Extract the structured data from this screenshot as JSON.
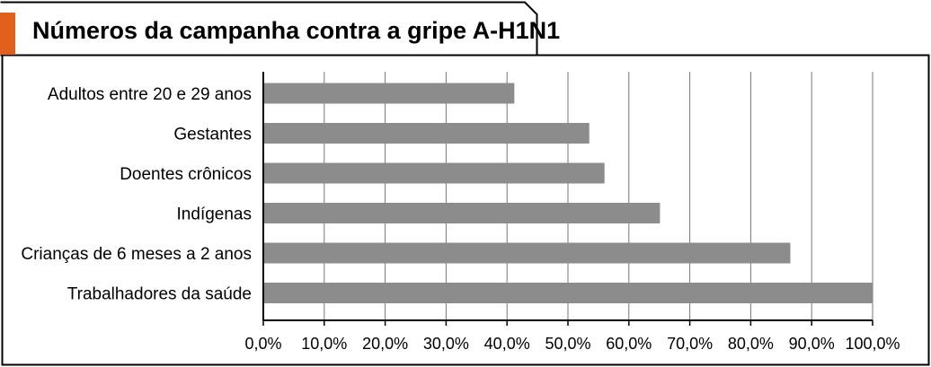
{
  "colors": {
    "accent": "#e0601c",
    "bar": "#8c8c8c",
    "grid": "#777777",
    "border": "#000000"
  },
  "chart_data": {
    "type": "bar",
    "orientation": "horizontal",
    "title": "Números da campanha contra a gripe A-H1N1",
    "categories": [
      "Adultos entre 20 e 29 anos",
      "Gestantes",
      "Doentes crônicos",
      "Indígenas",
      "Crianças de 6 meses a 2 anos",
      "Trabalhadores da saúde"
    ],
    "values": [
      41.2,
      53.5,
      56.0,
      65.1,
      86.5,
      100.0
    ],
    "xlabel": "",
    "ylabel": "",
    "xlim": [
      0,
      100
    ],
    "x_ticks": [
      0,
      10,
      20,
      30,
      40,
      50,
      60,
      70,
      80,
      90,
      100
    ],
    "x_tick_labels": [
      "0,0%",
      "10,0%",
      "20,0%",
      "30,0%",
      "40,0%",
      "50,0%",
      "60,0%",
      "70,0%",
      "80,0%",
      "90,0%",
      "100,0%"
    ],
    "grid": true,
    "legend": "none"
  }
}
